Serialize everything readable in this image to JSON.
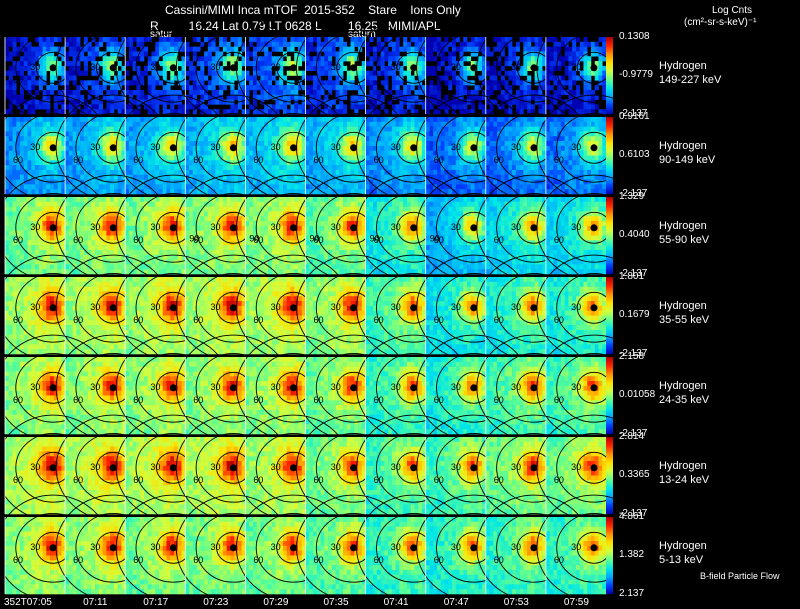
{
  "header": {
    "title": "Cassini/MIMI Inca mTOF  2015-352    Stare    Ions Only",
    "subtitle": "R         16.24 Lat 0.79 LT 0628 L        16.25   MIMI/APL",
    "units_top": "Log Cnts",
    "units_bottom": "(cm²-sr-s-keV)⁻¹",
    "saturn_labels": [
      "satur",
      "saturn"
    ]
  },
  "footer": {
    "legend_text": "B-field  Particle Flow"
  },
  "chart_data": {
    "type": "heatmap",
    "title": "Cassini/MIMI Inca mTOF  2015-352    Stare    Ions Only",
    "x_tick_labels": [
      "352T07:05",
      "07:11",
      "07:17",
      "07:23",
      "07:29",
      "07:35",
      "07:41",
      "07:47",
      "07:53",
      "07:59"
    ],
    "ring_labels": [
      "30",
      "60",
      "90"
    ],
    "colormap": [
      "#0000b0",
      "#0040ff",
      "#00a8ff",
      "#00e8e8",
      "#60ff90",
      "#d0ff40",
      "#ffe000",
      "#ff9000",
      "#ff2000",
      "#b00000"
    ],
    "panels": [
      {
        "species": "Hydrogen",
        "energy": "149-227 keV",
        "cbar_max": "0.1308",
        "cbar_mid": "-0.9779",
        "cbar_min": "-2.137",
        "frame_levels": [
          0.12,
          0.15,
          0.15,
          0.18,
          0.2,
          0.18,
          0.15,
          0.1,
          0.12,
          0.12
        ]
      },
      {
        "species": "Hydrogen",
        "energy": "90-149 keV",
        "cbar_max": "0.9161",
        "cbar_mid": "0.6103",
        "cbar_min": "-2.137",
        "frame_levels": [
          0.3,
          0.32,
          0.32,
          0.35,
          0.36,
          0.34,
          0.3,
          0.24,
          0.25,
          0.26
        ]
      },
      {
        "species": "Hydrogen",
        "energy": "55-90 keV",
        "cbar_max": "1.329",
        "cbar_mid": "0.4040",
        "cbar_min": "-2.137",
        "frame_levels": [
          0.55,
          0.56,
          0.56,
          0.57,
          0.57,
          0.53,
          0.44,
          0.34,
          0.4,
          0.4
        ]
      },
      {
        "species": "Hydrogen",
        "energy": "35-55 keV",
        "cbar_max": "1.801",
        "cbar_mid": "0.1679",
        "cbar_min": "-2.137",
        "frame_levels": [
          0.6,
          0.6,
          0.6,
          0.61,
          0.61,
          0.58,
          0.5,
          0.42,
          0.45,
          0.45
        ]
      },
      {
        "species": "Hydrogen",
        "energy": "24-35 keV",
        "cbar_max": "2.158",
        "cbar_mid": "0.01058",
        "cbar_min": "-2.137",
        "frame_levels": [
          0.58,
          0.58,
          0.58,
          0.58,
          0.58,
          0.55,
          0.48,
          0.45,
          0.5,
          0.5
        ]
      },
      {
        "species": "Hydrogen",
        "energy": "13-24 keV",
        "cbar_max": "2.814",
        "cbar_mid": "0.3365",
        "cbar_min": "-2.137",
        "frame_levels": [
          0.62,
          0.62,
          0.62,
          0.62,
          0.6,
          0.55,
          0.5,
          0.5,
          0.55,
          0.55
        ]
      },
      {
        "species": "Hydrogen",
        "energy": "5-13 keV",
        "cbar_max": "4.861",
        "cbar_mid": "1.382",
        "cbar_min": "2.137",
        "frame_levels": [
          0.58,
          0.58,
          0.56,
          0.56,
          0.55,
          0.52,
          0.48,
          0.46,
          0.48,
          0.48
        ]
      }
    ]
  }
}
